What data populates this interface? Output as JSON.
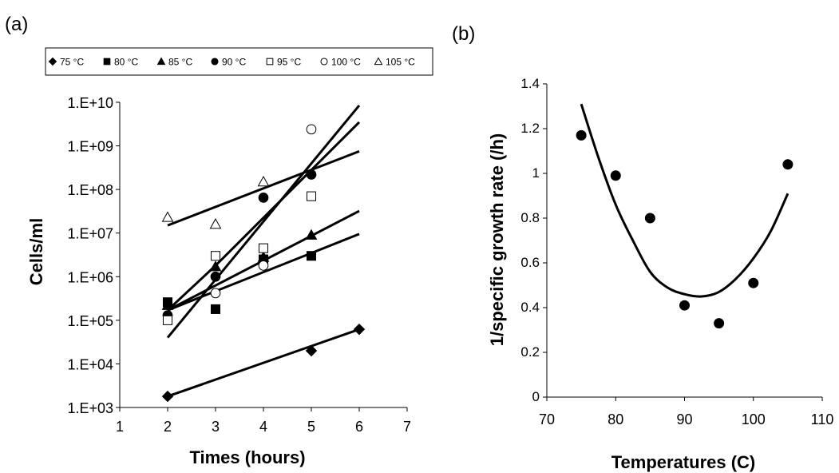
{
  "chart_data": [
    {
      "type": "scatter",
      "panel_label": "(a)",
      "xlabel": "Times (hours)",
      "ylabel": "Cells/ml",
      "xlim": [
        1,
        7
      ],
      "x_ticks": [
        "1",
        "2",
        "3",
        "4",
        "5",
        "6",
        "7"
      ],
      "y_scale": "log",
      "ylim": [
        1000,
        10000000000
      ],
      "y_ticks": [
        "1.E+10",
        "1.E+09",
        "1.E+08",
        "1.E+07",
        "1.E+06",
        "1.E+05",
        "1.E+04",
        "1.E+03"
      ],
      "legend_position": "top",
      "series": [
        {
          "name": "75 °C",
          "marker": "diamond",
          "points": [
            [
              2,
              1800
            ],
            [
              5,
              20000
            ],
            [
              6,
              62000
            ]
          ],
          "fit": [
            [
              2,
              1800
            ],
            [
              6,
              62000
            ]
          ]
        },
        {
          "name": "80 °C",
          "marker": "square",
          "points": [
            [
              2,
              260000
            ],
            [
              3,
              180000
            ],
            [
              4,
              2500000
            ],
            [
              5,
              3000000
            ]
          ],
          "fit": [
            [
              2,
              170000
            ],
            [
              6,
              9500000
            ]
          ]
        },
        {
          "name": "85 °C",
          "marker": "triangle",
          "points": [
            [
              2,
              220000
            ],
            [
              3,
              1700000
            ],
            [
              4,
              2800000
            ],
            [
              5,
              9000000
            ]
          ],
          "fit": [
            [
              2,
              170000
            ],
            [
              6,
              32000000
            ]
          ]
        },
        {
          "name": "90 °C",
          "marker": "circle",
          "points": [
            [
              2,
              130000
            ],
            [
              3,
              1000000
            ],
            [
              4,
              65000000
            ],
            [
              5,
              220000000
            ]
          ],
          "fit": [
            [
              2,
              170000
            ],
            [
              3,
              1800000
            ],
            [
              6,
              3500000000
            ]
          ]
        },
        {
          "name": "95 °C",
          "marker": "square-open",
          "points": [
            [
              2,
              100000
            ],
            [
              3,
              3000000
            ],
            [
              4,
              4500000
            ],
            [
              5,
              70000000
            ]
          ],
          "fit": [
            [
              2,
              40000
            ],
            [
              6,
              8500000000
            ]
          ]
        },
        {
          "name": "100 °C",
          "marker": "circle-open",
          "points": [
            [
              3,
              420000
            ],
            [
              4,
              1800000
            ],
            [
              5,
              2400000000
            ]
          ],
          "fit": []
        },
        {
          "name": "105 °C",
          "marker": "triangle-open",
          "points": [
            [
              2,
              23000000
            ],
            [
              3,
              16000000
            ],
            [
              4,
              150000000
            ]
          ],
          "fit": [
            [
              2,
              15000000
            ],
            [
              6,
              750000000
            ]
          ]
        }
      ]
    },
    {
      "type": "scatter",
      "panel_label": "(b)",
      "xlabel": "Temperatures (C)",
      "ylabel": "1/specific growth rate (/h)",
      "xlim": [
        70,
        110
      ],
      "x_ticks": [
        "70",
        "80",
        "90",
        "100",
        "110"
      ],
      "ylim": [
        0,
        1.4
      ],
      "y_ticks": [
        "1.4",
        "1.2",
        "1",
        "0.8",
        "0.6",
        "0.4",
        "0.2",
        "0"
      ],
      "points": [
        [
          75,
          1.17
        ],
        [
          80,
          0.99
        ],
        [
          85,
          0.8
        ],
        [
          90,
          0.41
        ],
        [
          95,
          0.33
        ],
        [
          100,
          0.51
        ],
        [
          105,
          1.04
        ]
      ],
      "fit": [
        [
          75,
          1.31
        ],
        [
          77.5,
          1.07
        ],
        [
          80,
          0.86
        ],
        [
          82.5,
          0.7
        ],
        [
          85,
          0.56
        ],
        [
          87.5,
          0.49
        ],
        [
          90,
          0.46
        ],
        [
          92.5,
          0.45
        ],
        [
          95,
          0.47
        ],
        [
          97.5,
          0.53
        ],
        [
          100,
          0.62
        ],
        [
          102.5,
          0.74
        ],
        [
          105,
          0.91
        ]
      ]
    }
  ]
}
